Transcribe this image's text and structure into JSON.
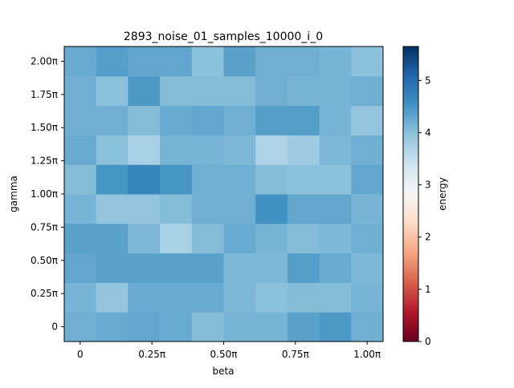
{
  "chart_data": {
    "type": "heatmap",
    "title": "2893_noise_01_samples_10000_i_0",
    "xlabel": "beta",
    "ylabel": "gamma",
    "colorbar_label": "energy",
    "x_ticks": [
      "0",
      "0.25π",
      "0.50π",
      "0.75π",
      "1.00π"
    ],
    "y_ticks": [
      "0",
      "0.25π",
      "0.50π",
      "0.75π",
      "1.00π",
      "1.25π",
      "1.50π",
      "1.75π",
      "2.00π"
    ],
    "colorbar_ticks": [
      "0",
      "1",
      "2",
      "3",
      "4",
      "5"
    ],
    "colorbar_range": [
      0,
      5.65
    ],
    "colormap": "RdBu",
    "grid": false,
    "rows_bottom_to_top": [
      [
        4.2,
        4.25,
        4.3,
        4.25,
        4.05,
        4.15,
        4.15,
        4.35,
        4.45,
        4.2
      ],
      [
        4.15,
        3.95,
        4.25,
        4.25,
        4.25,
        4.1,
        4.0,
        4.05,
        4.05,
        4.15
      ],
      [
        4.3,
        4.35,
        4.35,
        4.35,
        4.35,
        4.1,
        4.1,
        4.4,
        4.25,
        4.1
      ],
      [
        4.35,
        4.35,
        4.1,
        3.75,
        4.05,
        4.25,
        4.15,
        4.05,
        4.1,
        4.2
      ],
      [
        4.15,
        3.95,
        3.95,
        4.05,
        4.2,
        4.2,
        4.55,
        4.3,
        4.3,
        4.15
      ],
      [
        4.05,
        4.5,
        4.7,
        4.5,
        4.2,
        4.2,
        4.05,
        4.0,
        4.0,
        4.3
      ],
      [
        4.25,
        4.0,
        3.75,
        4.15,
        4.15,
        4.1,
        3.7,
        3.85,
        4.1,
        4.2
      ],
      [
        4.2,
        4.2,
        4.05,
        4.25,
        4.3,
        4.2,
        4.4,
        4.4,
        4.15,
        3.95
      ],
      [
        4.2,
        4.0,
        4.45,
        4.05,
        4.05,
        4.05,
        4.2,
        4.15,
        4.15,
        4.2
      ],
      [
        4.25,
        4.4,
        4.3,
        4.3,
        4.0,
        4.35,
        4.2,
        4.2,
        4.15,
        4.0
      ]
    ]
  }
}
